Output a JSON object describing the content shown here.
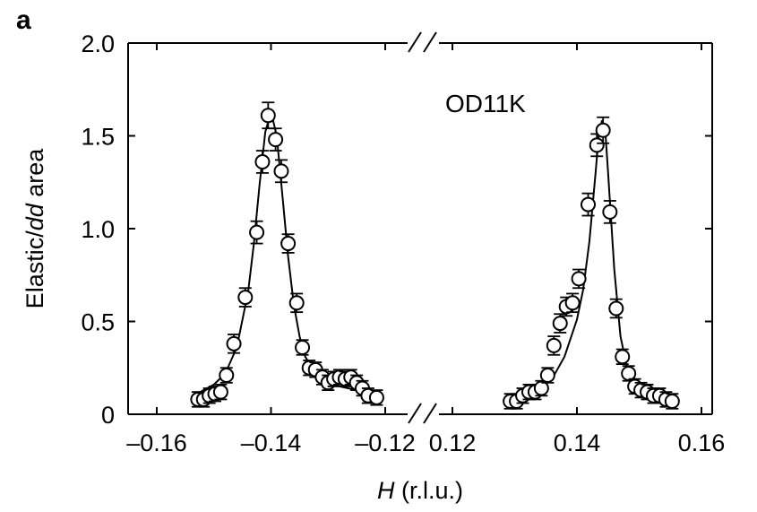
{
  "panel_label": "a",
  "chart_data": {
    "type": "scatter",
    "annotation": "OD11K",
    "xlabel": {
      "italic": "H",
      "rest": " (r.l.u.)"
    },
    "ylabel": {
      "pre": "Elastic/",
      "italic": "dd",
      "post": " area"
    },
    "ylim": [
      0,
      2.0
    ],
    "y_ticks": [
      "0",
      "0.5",
      "1.0",
      "1.5",
      "2.0"
    ],
    "axis_break": true,
    "left_segment": {
      "xlim": [
        -0.16,
        -0.12
      ],
      "x_ticks": [
        "–0.16",
        "–0.14",
        "–0.12"
      ],
      "points": [
        {
          "x": -0.1528,
          "y": 0.08,
          "err": 0.04
        },
        {
          "x": -0.1518,
          "y": 0.08,
          "err": 0.04
        },
        {
          "x": -0.1508,
          "y": 0.1,
          "err": 0.04
        },
        {
          "x": -0.1498,
          "y": 0.11,
          "err": 0.04
        },
        {
          "x": -0.1488,
          "y": 0.12,
          "err": 0.04
        },
        {
          "x": -0.1478,
          "y": 0.21,
          "err": 0.04
        },
        {
          "x": -0.1465,
          "y": 0.38,
          "err": 0.05
        },
        {
          "x": -0.1445,
          "y": 0.63,
          "err": 0.05
        },
        {
          "x": -0.1425,
          "y": 0.98,
          "err": 0.06
        },
        {
          "x": -0.1415,
          "y": 1.36,
          "err": 0.06
        },
        {
          "x": -0.1405,
          "y": 1.61,
          "err": 0.07
        },
        {
          "x": -0.1392,
          "y": 1.48,
          "err": 0.06
        },
        {
          "x": -0.1382,
          "y": 1.31,
          "err": 0.06
        },
        {
          "x": -0.137,
          "y": 0.92,
          "err": 0.05
        },
        {
          "x": -0.1355,
          "y": 0.6,
          "err": 0.05
        },
        {
          "x": -0.1345,
          "y": 0.36,
          "err": 0.04
        },
        {
          "x": -0.1333,
          "y": 0.25,
          "err": 0.04
        },
        {
          "x": -0.1322,
          "y": 0.24,
          "err": 0.04
        },
        {
          "x": -0.131,
          "y": 0.2,
          "err": 0.04
        },
        {
          "x": -0.13,
          "y": 0.17,
          "err": 0.04
        },
        {
          "x": -0.129,
          "y": 0.19,
          "err": 0.04
        },
        {
          "x": -0.128,
          "y": 0.2,
          "err": 0.04
        },
        {
          "x": -0.127,
          "y": 0.19,
          "err": 0.04
        },
        {
          "x": -0.126,
          "y": 0.2,
          "err": 0.04
        },
        {
          "x": -0.125,
          "y": 0.17,
          "err": 0.04
        },
        {
          "x": -0.124,
          "y": 0.14,
          "err": 0.04
        },
        {
          "x": -0.123,
          "y": 0.1,
          "err": 0.04
        },
        {
          "x": -0.1215,
          "y": 0.09,
          "err": 0.04
        }
      ],
      "fit": [
        {
          "x": -0.153,
          "y": 0.11
        },
        {
          "x": -0.15,
          "y": 0.16
        },
        {
          "x": -0.148,
          "y": 0.22
        },
        {
          "x": -0.146,
          "y": 0.36
        },
        {
          "x": -0.144,
          "y": 0.66
        },
        {
          "x": -0.143,
          "y": 0.92
        },
        {
          "x": -0.142,
          "y": 1.24
        },
        {
          "x": -0.141,
          "y": 1.52
        },
        {
          "x": -0.14,
          "y": 1.63
        },
        {
          "x": -0.139,
          "y": 1.5
        },
        {
          "x": -0.138,
          "y": 1.18
        },
        {
          "x": -0.137,
          "y": 0.85
        },
        {
          "x": -0.136,
          "y": 0.59
        },
        {
          "x": -0.135,
          "y": 0.42
        },
        {
          "x": -0.134,
          "y": 0.31
        },
        {
          "x": -0.132,
          "y": 0.21
        },
        {
          "x": -0.13,
          "y": 0.17
        },
        {
          "x": -0.128,
          "y": 0.15
        },
        {
          "x": -0.125,
          "y": 0.13
        },
        {
          "x": -0.122,
          "y": 0.11
        }
      ]
    },
    "right_segment": {
      "xlim": [
        0.12,
        0.16
      ],
      "x_ticks": [
        "0.12",
        "0.14",
        "0.16"
      ],
      "points": [
        {
          "x": 0.1293,
          "y": 0.07,
          "err": 0.04
        },
        {
          "x": 0.1303,
          "y": 0.07,
          "err": 0.04
        },
        {
          "x": 0.1313,
          "y": 0.1,
          "err": 0.04
        },
        {
          "x": 0.1323,
          "y": 0.12,
          "err": 0.04
        },
        {
          "x": 0.1333,
          "y": 0.12,
          "err": 0.04
        },
        {
          "x": 0.1343,
          "y": 0.14,
          "err": 0.04
        },
        {
          "x": 0.1353,
          "y": 0.21,
          "err": 0.04
        },
        {
          "x": 0.1363,
          "y": 0.37,
          "err": 0.05
        },
        {
          "x": 0.1373,
          "y": 0.49,
          "err": 0.05
        },
        {
          "x": 0.1383,
          "y": 0.58,
          "err": 0.05
        },
        {
          "x": 0.1393,
          "y": 0.6,
          "err": 0.05
        },
        {
          "x": 0.1403,
          "y": 0.73,
          "err": 0.05
        },
        {
          "x": 0.1418,
          "y": 1.13,
          "err": 0.06
        },
        {
          "x": 0.1432,
          "y": 1.45,
          "err": 0.06
        },
        {
          "x": 0.1442,
          "y": 1.53,
          "err": 0.07
        },
        {
          "x": 0.1453,
          "y": 1.09,
          "err": 0.06
        },
        {
          "x": 0.1463,
          "y": 0.57,
          "err": 0.05
        },
        {
          "x": 0.1473,
          "y": 0.31,
          "err": 0.04
        },
        {
          "x": 0.1483,
          "y": 0.22,
          "err": 0.04
        },
        {
          "x": 0.1493,
          "y": 0.15,
          "err": 0.04
        },
        {
          "x": 0.1503,
          "y": 0.13,
          "err": 0.04
        },
        {
          "x": 0.1513,
          "y": 0.12,
          "err": 0.04
        },
        {
          "x": 0.1523,
          "y": 0.1,
          "err": 0.04
        },
        {
          "x": 0.1533,
          "y": 0.1,
          "err": 0.04
        },
        {
          "x": 0.1543,
          "y": 0.08,
          "err": 0.04
        },
        {
          "x": 0.1553,
          "y": 0.07,
          "err": 0.04
        }
      ],
      "fit": [
        {
          "x": 0.13,
          "y": 0.07
        },
        {
          "x": 0.133,
          "y": 0.11
        },
        {
          "x": 0.136,
          "y": 0.19
        },
        {
          "x": 0.138,
          "y": 0.31
        },
        {
          "x": 0.14,
          "y": 0.51
        },
        {
          "x": 0.141,
          "y": 0.67
        },
        {
          "x": 0.142,
          "y": 0.93
        },
        {
          "x": 0.143,
          "y": 1.3
        },
        {
          "x": 0.1435,
          "y": 1.5
        },
        {
          "x": 0.144,
          "y": 1.58
        },
        {
          "x": 0.1445,
          "y": 1.55
        },
        {
          "x": 0.145,
          "y": 1.3
        },
        {
          "x": 0.146,
          "y": 0.78
        },
        {
          "x": 0.147,
          "y": 0.42
        },
        {
          "x": 0.148,
          "y": 0.26
        },
        {
          "x": 0.15,
          "y": 0.15
        },
        {
          "x": 0.152,
          "y": 0.1
        },
        {
          "x": 0.154,
          "y": 0.08
        },
        {
          "x": 0.156,
          "y": 0.06
        }
      ]
    }
  }
}
